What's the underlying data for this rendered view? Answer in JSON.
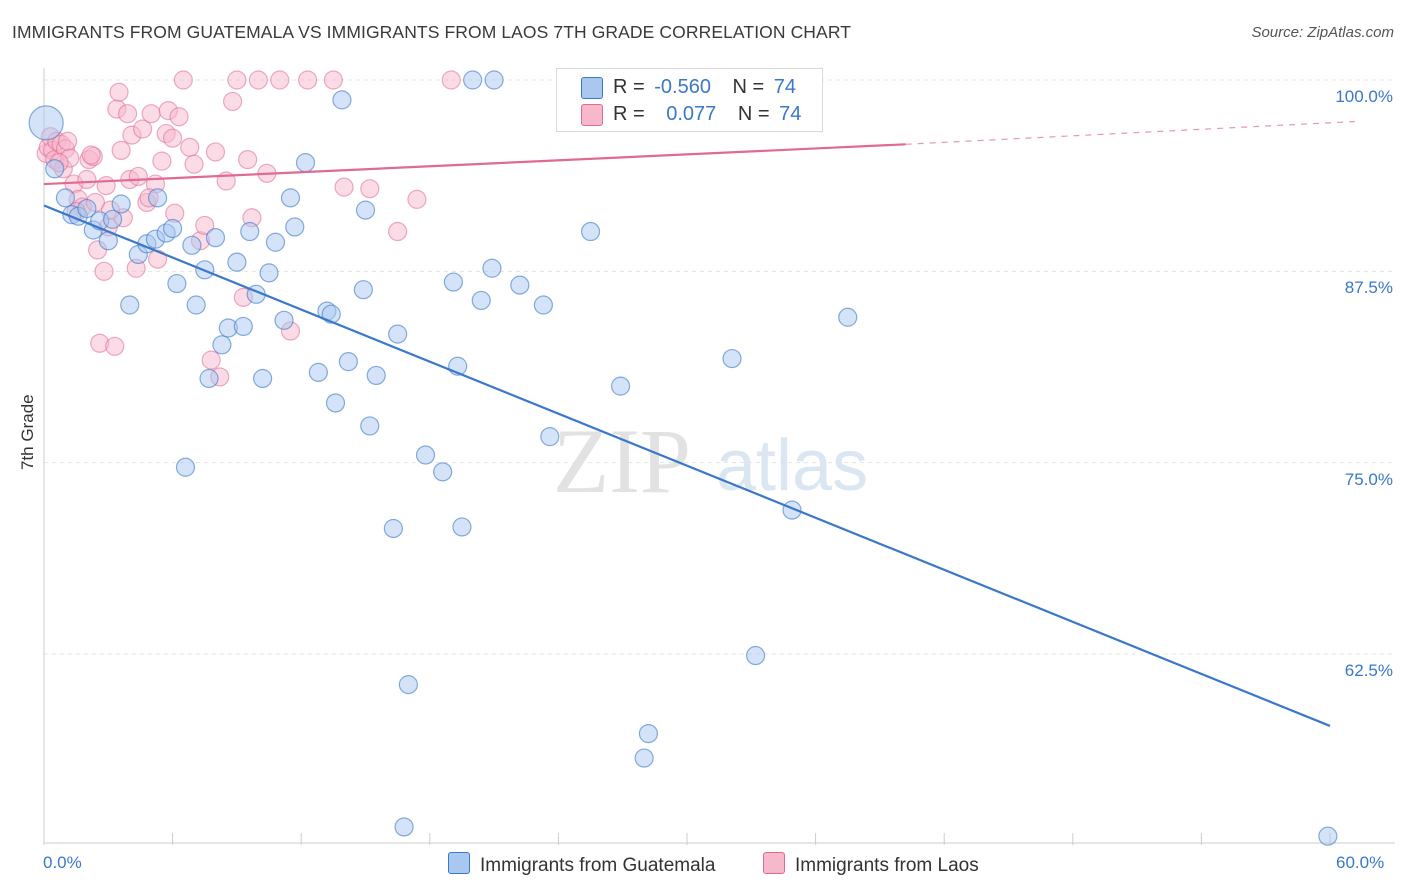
{
  "title": "IMMIGRANTS FROM GUATEMALA VS IMMIGRANTS FROM LAOS 7TH GRADE CORRELATION CHART",
  "source": "Source: ZipAtlas.com",
  "watermark": {
    "zip": "ZIP",
    "atlas": "atlas"
  },
  "legend_top": {
    "rows": [
      {
        "r_label": "R =",
        "r_value": "-0.560",
        "n_label": "N =",
        "n_value": "74",
        "color": "#a9c8f0"
      },
      {
        "r_label": "R =",
        "r_value": "0.077",
        "n_label": "N =",
        "n_value": "74",
        "color": "#f7b8cb"
      }
    ]
  },
  "chart_data": {
    "type": "scatter",
    "ylabel": "7th Grade",
    "x_tick_labels": [
      "0.0%",
      "60.0%"
    ],
    "y_tick_labels": [
      "100.0%",
      "87.5%",
      "75.0%",
      "62.5%"
    ],
    "xlim": [
      0,
      60
    ],
    "ylim": [
      50.5,
      103
    ],
    "y_ticks": [
      100,
      87.5,
      75,
      62.5
    ],
    "grid": true,
    "colors": {
      "blue": "#3a78c9",
      "blue_fill": "#a9c8f0",
      "pink": "#e06a93",
      "pink_fill": "#f7b8cb",
      "axis_text": "#3a78c9"
    },
    "series": [
      {
        "name": "Immigrants from Guatemala",
        "color": "#3a78c9",
        "fill": "#a9c8f0",
        "trend": {
          "x": [
            0,
            60
          ],
          "y": [
            91.8,
            57.8
          ],
          "dashed_beyond": null
        },
        "points": [
          [
            0.1,
            97.2
          ],
          [
            0.5,
            94.2
          ],
          [
            1.0,
            92.3
          ],
          [
            1.3,
            91.2
          ],
          [
            1.6,
            91.1
          ],
          [
            2.0,
            91.6
          ],
          [
            2.3,
            90.2
          ],
          [
            2.6,
            90.8
          ],
          [
            3.0,
            89.5
          ],
          [
            3.2,
            90.9
          ],
          [
            3.6,
            91.9
          ],
          [
            4.0,
            85.3
          ],
          [
            4.4,
            88.6
          ],
          [
            4.8,
            89.3
          ],
          [
            5.2,
            89.6
          ],
          [
            5.3,
            92.3
          ],
          [
            5.7,
            90.0
          ],
          [
            6.0,
            90.3
          ],
          [
            6.2,
            86.7
          ],
          [
            6.6,
            74.7
          ],
          [
            6.9,
            89.2
          ],
          [
            7.1,
            85.3
          ],
          [
            7.5,
            87.6
          ],
          [
            7.7,
            80.5
          ],
          [
            8.0,
            89.7
          ],
          [
            8.3,
            82.7
          ],
          [
            8.6,
            83.8
          ],
          [
            9.0,
            88.1
          ],
          [
            9.3,
            83.9
          ],
          [
            9.6,
            90.1
          ],
          [
            9.9,
            86.0
          ],
          [
            10.2,
            80.5
          ],
          [
            10.5,
            87.4
          ],
          [
            10.8,
            89.4
          ],
          [
            11.2,
            84.3
          ],
          [
            11.5,
            92.3
          ],
          [
            11.7,
            90.4
          ],
          [
            12.2,
            94.6
          ],
          [
            12.8,
            80.9
          ],
          [
            13.2,
            84.9
          ],
          [
            13.4,
            84.7
          ],
          [
            13.6,
            78.9
          ],
          [
            13.9,
            98.7
          ],
          [
            14.2,
            81.6
          ],
          [
            14.9,
            86.3
          ],
          [
            15.0,
            91.5
          ],
          [
            15.2,
            77.4
          ],
          [
            15.5,
            80.7
          ],
          [
            16.3,
            70.7
          ],
          [
            16.5,
            83.4
          ],
          [
            16.8,
            51.2
          ],
          [
            17.0,
            60.5
          ],
          [
            17.8,
            75.5
          ],
          [
            18.6,
            74.4
          ],
          [
            19.1,
            86.8
          ],
          [
            19.3,
            81.3
          ],
          [
            19.5,
            70.8
          ],
          [
            20.0,
            100.0
          ],
          [
            20.4,
            85.6
          ],
          [
            20.9,
            87.7
          ],
          [
            21.0,
            100.0
          ],
          [
            22.2,
            86.6
          ],
          [
            23.3,
            85.3
          ],
          [
            23.6,
            76.7
          ],
          [
            25.5,
            90.1
          ],
          [
            28.2,
            57.3
          ],
          [
            28.0,
            55.7
          ],
          [
            32.1,
            81.8
          ],
          [
            34.1,
            100.0
          ],
          [
            34.9,
            71.9
          ],
          [
            33.2,
            62.4
          ],
          [
            37.5,
            84.5
          ],
          [
            26.9,
            80.0
          ],
          [
            59.9,
            50.6
          ]
        ]
      },
      {
        "name": "Immigrants from Laos",
        "color": "#e06a93",
        "fill": "#f7b8cb",
        "trend": {
          "x": [
            0,
            40.2
          ],
          "y": [
            93.2,
            95.8
          ],
          "dashed_to": [
            60,
            97.2
          ]
        },
        "points": [
          [
            0.1,
            95.2
          ],
          [
            0.2,
            95.6
          ],
          [
            0.3,
            96.3
          ],
          [
            0.4,
            95.4
          ],
          [
            0.5,
            94.8
          ],
          [
            0.6,
            96.0
          ],
          [
            0.8,
            95.8
          ],
          [
            0.9,
            94.2
          ],
          [
            1.0,
            95.5
          ],
          [
            1.2,
            94.9
          ],
          [
            1.4,
            93.2
          ],
          [
            1.6,
            92.2
          ],
          [
            1.8,
            91.7
          ],
          [
            2.0,
            93.5
          ],
          [
            2.1,
            94.8
          ],
          [
            2.3,
            95.0
          ],
          [
            2.4,
            92.0
          ],
          [
            2.5,
            88.9
          ],
          [
            2.6,
            82.8
          ],
          [
            2.8,
            87.5
          ],
          [
            2.9,
            93.1
          ],
          [
            3.0,
            90.4
          ],
          [
            3.3,
            82.6
          ],
          [
            3.4,
            98.1
          ],
          [
            3.6,
            95.4
          ],
          [
            3.7,
            91.0
          ],
          [
            3.9,
            97.8
          ],
          [
            4.0,
            93.5
          ],
          [
            4.1,
            96.4
          ],
          [
            4.3,
            87.7
          ],
          [
            4.4,
            93.7
          ],
          [
            4.6,
            96.8
          ],
          [
            4.8,
            92.0
          ],
          [
            5.0,
            97.8
          ],
          [
            5.2,
            93.2
          ],
          [
            5.3,
            88.3
          ],
          [
            5.5,
            94.7
          ],
          [
            5.7,
            96.5
          ],
          [
            5.8,
            98.0
          ],
          [
            6.0,
            96.2
          ],
          [
            6.3,
            97.6
          ],
          [
            6.5,
            100.0
          ],
          [
            6.8,
            95.6
          ],
          [
            7.0,
            94.5
          ],
          [
            7.3,
            89.5
          ],
          [
            7.5,
            90.5
          ],
          [
            7.8,
            81.7
          ],
          [
            8.0,
            95.3
          ],
          [
            8.2,
            80.6
          ],
          [
            8.5,
            93.4
          ],
          [
            8.8,
            98.6
          ],
          [
            9.0,
            100.0
          ],
          [
            9.3,
            85.8
          ],
          [
            9.5,
            94.8
          ],
          [
            9.7,
            91.0
          ],
          [
            10.0,
            100.0
          ],
          [
            10.4,
            93.9
          ],
          [
            11.0,
            100.0
          ],
          [
            11.5,
            83.6
          ],
          [
            12.3,
            100.0
          ],
          [
            13.5,
            100.0
          ],
          [
            14.0,
            93.0
          ],
          [
            15.2,
            92.9
          ],
          [
            16.5,
            90.1
          ],
          [
            17.4,
            92.2
          ],
          [
            19.0,
            100.0
          ],
          [
            3.5,
            99.2
          ],
          [
            1.1,
            96.0
          ],
          [
            2.2,
            95.1
          ],
          [
            0.7,
            94.6
          ],
          [
            1.5,
            91.4
          ],
          [
            6.1,
            91.3
          ],
          [
            4.9,
            92.3
          ],
          [
            3.1,
            91.5
          ]
        ]
      }
    ]
  }
}
